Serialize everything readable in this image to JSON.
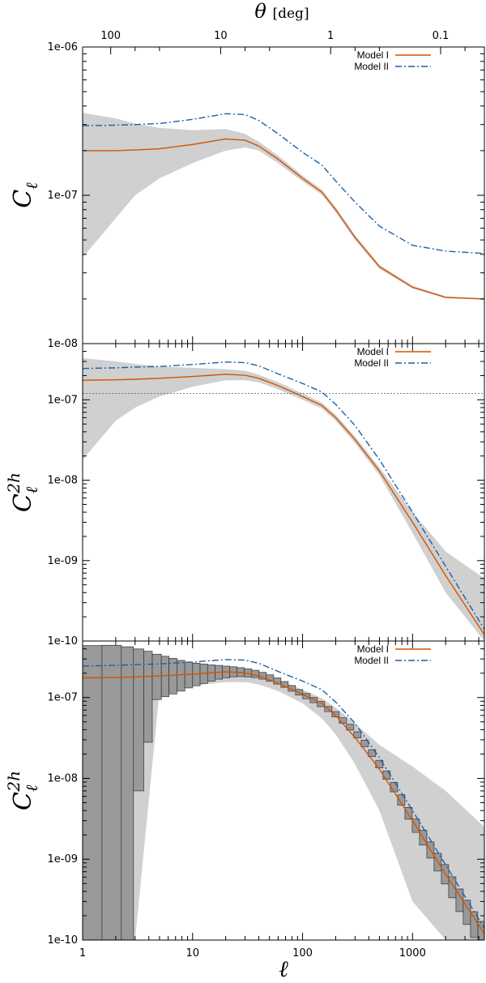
{
  "chart_data": [
    {
      "type": "line",
      "panel": "top",
      "ylabel": "C_ℓ",
      "yscale": "log",
      "ylim": [
        1e-08,
        1e-06
      ],
      "yticks": [
        "1e-08",
        "1e-07",
        "1e-06"
      ],
      "xscale": "log",
      "xlim": [
        1,
        4500
      ],
      "top_axis": {
        "label": "θ [deg]",
        "ticks": [
          {
            "label": "100",
            "ell": 1.8
          },
          {
            "label": "10",
            "ell": 18
          },
          {
            "label": "1",
            "ell": 180
          },
          {
            "label": "0.1",
            "ell": 1800
          }
        ]
      },
      "legend": "top-right",
      "x": [
        1,
        2,
        3,
        5,
        10,
        20,
        30,
        40,
        60,
        100,
        150,
        200,
        300,
        500,
        1000,
        2000,
        4500
      ],
      "series": [
        {
          "name": "Model I",
          "color": "#d35400",
          "values": [
            2e-07,
            2e-07,
            2.02e-07,
            2.06e-07,
            2.2e-07,
            2.4e-07,
            2.35e-07,
            2.15e-07,
            1.75e-07,
            1.3e-07,
            1.05e-07,
            8e-08,
            5.2e-08,
            3.3e-08,
            2.4e-08,
            2.05e-08,
            2e-08
          ]
        },
        {
          "name": "Model II",
          "color": "#1f5fa8",
          "dash": true,
          "values": [
            2.95e-07,
            2.97e-07,
            3e-07,
            3.05e-07,
            3.25e-07,
            3.55e-07,
            3.5e-07,
            3.2e-07,
            2.6e-07,
            1.95e-07,
            1.6e-07,
            1.25e-07,
            9e-08,
            6.2e-08,
            4.6e-08,
            4.2e-08,
            4.05e-08
          ]
        }
      ],
      "band": {
        "upper": [
          3.6e-07,
          3.3e-07,
          3.05e-07,
          2.85e-07,
          2.75e-07,
          2.8e-07,
          2.6e-07,
          2.3e-07,
          1.85e-07,
          1.36e-07,
          1.09e-07,
          8.3e-08,
          5.4e-08,
          3.4e-08,
          2.45e-08,
          2.08e-08,
          2.02e-08
        ],
        "lower": [
          3.8e-08,
          7e-08,
          1e-07,
          1.3e-07,
          1.65e-07,
          2e-07,
          2.1e-07,
          2e-07,
          1.65e-07,
          1.24e-07,
          1.01e-07,
          7.7e-08,
          5e-08,
          3.2e-08,
          2.35e-08,
          2.02e-08,
          1.98e-08
        ]
      }
    },
    {
      "type": "line",
      "panel": "middle",
      "ylabel": "C_ℓ^2h",
      "yscale": "log",
      "ylim": [
        1e-10,
        5e-07
      ],
      "yticks": [
        "1e-10",
        "1e-09",
        "1e-08",
        "1e-07"
      ],
      "xscale": "log",
      "xlim": [
        1,
        4500
      ],
      "hline": 1.2e-07,
      "legend": "top-right",
      "x": [
        1,
        2,
        3,
        5,
        10,
        20,
        30,
        40,
        60,
        100,
        150,
        200,
        300,
        500,
        1000,
        2000,
        4500
      ],
      "series": [
        {
          "name": "Model I",
          "color": "#d35400",
          "values": [
            1.75e-07,
            1.77e-07,
            1.8e-07,
            1.85e-07,
            1.95e-07,
            2.08e-07,
            2.02e-07,
            1.85e-07,
            1.5e-07,
            1.1e-07,
            8.5e-08,
            6e-08,
            3.2e-08,
            1.3e-08,
            3e-09,
            6.5e-10,
            1.2e-10
          ]
        },
        {
          "name": "Model II",
          "color": "#1f5fa8",
          "dash": true,
          "values": [
            2.45e-07,
            2.5e-07,
            2.55e-07,
            2.6e-07,
            2.75e-07,
            2.95e-07,
            2.9e-07,
            2.65e-07,
            2.1e-07,
            1.6e-07,
            1.25e-07,
            8.8e-08,
            4.8e-08,
            1.8e-08,
            4e-09,
            8.5e-10,
            1.4e-10
          ]
        }
      ],
      "band": {
        "upper": [
          3.3e-07,
          3e-07,
          2.8e-07,
          2.6e-07,
          2.5e-07,
          2.4e-07,
          2.3e-07,
          2.05e-07,
          1.65e-07,
          1.2e-07,
          9.2e-08,
          6.5e-08,
          3.5e-08,
          1.45e-08,
          4e-09,
          1.3e-09,
          6e-10
        ],
        "lower": [
          1.8e-08,
          5.5e-08,
          8e-08,
          1.1e-07,
          1.45e-07,
          1.75e-07,
          1.75e-07,
          1.65e-07,
          1.35e-07,
          1e-07,
          7.8e-08,
          5.5e-08,
          2.9e-08,
          1.15e-08,
          2.2e-09,
          4e-10,
          1e-10
        ]
      }
    },
    {
      "type": "line",
      "panel": "bottom",
      "ylabel": "C_ℓ^2h",
      "yscale": "log",
      "ylim": [
        1e-10,
        5e-07
      ],
      "yticks": [
        "1e-10",
        "1e-09",
        "1e-08",
        "1e-07"
      ],
      "xscale": "log",
      "xlim": [
        1,
        4500
      ],
      "xlabel": "ℓ",
      "xticks": [
        "1",
        "10",
        "100",
        "1000"
      ],
      "legend": "top-right",
      "x": [
        1,
        2,
        3,
        5,
        10,
        20,
        30,
        40,
        60,
        100,
        150,
        200,
        300,
        500,
        1000,
        2000,
        4500
      ],
      "series": [
        {
          "name": "Model I",
          "color": "#d35400",
          "values": [
            1.75e-07,
            1.77e-07,
            1.8e-07,
            1.85e-07,
            1.95e-07,
            2.08e-07,
            2.02e-07,
            1.85e-07,
            1.5e-07,
            1.1e-07,
            8.5e-08,
            6e-08,
            3.2e-08,
            1.3e-08,
            3e-09,
            6.5e-10,
            1.2e-10
          ]
        },
        {
          "name": "Model II",
          "color": "#1f5fa8",
          "dash": true,
          "values": [
            2.45e-07,
            2.5e-07,
            2.55e-07,
            2.6e-07,
            2.75e-07,
            2.95e-07,
            2.9e-07,
            2.65e-07,
            2.1e-07,
            1.6e-07,
            1.25e-07,
            8.8e-08,
            4.8e-08,
            1.8e-08,
            4e-09,
            8.5e-10,
            1.4e-10
          ]
        }
      ],
      "band": {
        "upper": [
          2.6e-07,
          2.6e-07,
          2.55e-07,
          2.5e-07,
          2.45e-07,
          2.3e-07,
          2.2e-07,
          2e-07,
          1.65e-07,
          1.25e-07,
          9.8e-08,
          7.5e-08,
          4.8e-08,
          2.6e-08,
          1.4e-08,
          7e-09,
          2.5e-09
        ],
        "lower": [
          1e-10,
          1e-10,
          1e-10,
          1.2e-07,
          1.4e-07,
          1.55e-07,
          1.55e-07,
          1.45e-07,
          1.2e-07,
          8.5e-08,
          5.5e-08,
          3.5e-08,
          1.5e-08,
          4e-09,
          3e-10,
          1e-10,
          1e-10
        ]
      },
      "bins": {
        "ell_bounds": [
          1,
          1.5,
          2.25,
          2.9,
          3.6,
          4.3,
          5.2,
          6.1,
          7.2,
          8.5,
          10,
          11.7,
          13.7,
          16,
          18.7,
          21.8,
          25.4,
          29.6,
          34.5,
          40.2,
          46.8,
          54.5,
          63.5,
          74,
          86.2,
          100.4,
          117,
          136.3,
          158.8,
          185,
          215.5,
          251,
          292.5,
          340.7,
          397,
          462.5,
          538.8,
          627.7,
          731.3,
          852,
          992.6,
          1156.5,
          1347.4,
          1569.8,
          1828.9,
          2130.8,
          2482.5,
          2892.3,
          3369.7,
          3926,
          4500
        ],
        "center": [
          1.75e-07,
          1.76e-07,
          1.77e-07,
          1.78e-07,
          1.79e-07,
          1.8e-07,
          1.82e-07,
          1.84e-07,
          1.86e-07,
          1.9e-07,
          1.93e-07,
          1.97e-07,
          2.01e-07,
          2.05e-07,
          2.07e-07,
          2.08e-07,
          2.06e-07,
          2.02e-07,
          1.96e-07,
          1.86e-07,
          1.74e-07,
          1.6e-07,
          1.45e-07,
          1.3e-07,
          1.16e-07,
          1.04e-07,
          9.3e-08,
          8.3e-08,
          7.2e-08,
          6.2e-08,
          5.2e-08,
          4.3e-08,
          3.45e-08,
          2.7e-08,
          2.05e-08,
          1.5e-08,
          1.1e-08,
          7.8e-09,
          5.4e-09,
          3.7e-09,
          2.6e-09,
          1.85e-09,
          1.3e-09,
          9.2e-10,
          6.5e-10,
          4.5e-10,
          3.1e-10,
          2.2e-10,
          1.55e-10,
          1.15e-10
        ],
        "half_width_dex": [
          0.4,
          0.4,
          0.38,
          0.35,
          0.32,
          0.28,
          0.25,
          0.22,
          0.19,
          0.16,
          0.14,
          0.12,
          0.1,
          0.085,
          0.072,
          0.062,
          0.055,
          0.05,
          0.045,
          0.042,
          0.04,
          0.038,
          0.036,
          0.035,
          0.034,
          0.033,
          0.032,
          0.032,
          0.032,
          0.033,
          0.034,
          0.036,
          0.038,
          0.04,
          0.043,
          0.047,
          0.052,
          0.058,
          0.065,
          0.073,
          0.082,
          0.092,
          0.1,
          0.11,
          0.12,
          0.13,
          0.14,
          0.15,
          0.16,
          0.17
        ],
        "first_bins_full": 3
      }
    }
  ]
}
